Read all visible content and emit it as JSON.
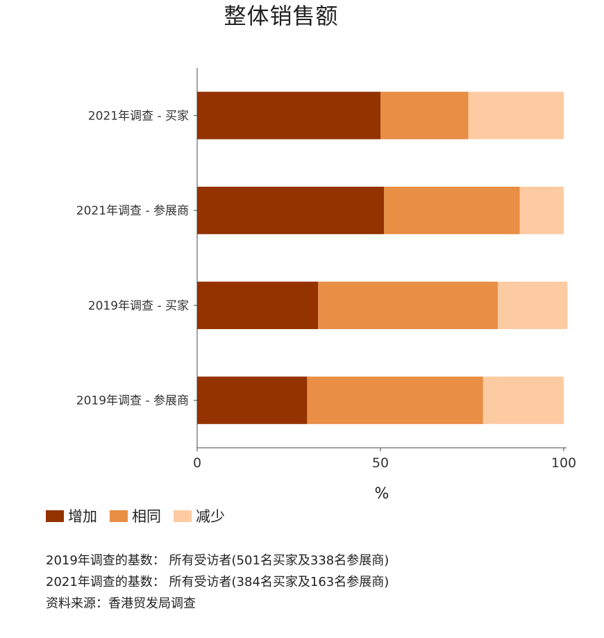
{
  "chart_data": {
    "type": "bar",
    "orientation": "horizontal",
    "stacked": true,
    "title": "整体销售额",
    "categories": [
      "2021年调查 - 买家",
      "2021年调查 - 参展商",
      "2019年调查 - 买家",
      "2019年调查 - 参展商"
    ],
    "series": [
      {
        "name": "增加",
        "color": "#943200",
        "values": [
          50,
          51,
          33,
          30
        ]
      },
      {
        "name": "相同",
        "color": "#E88E45",
        "values": [
          24,
          37,
          49,
          48
        ]
      },
      {
        "name": "减少",
        "color": "#FDCBA2",
        "values": [
          26,
          12,
          19,
          22
        ]
      }
    ],
    "xlabel": "%",
    "xlim": [
      0,
      100
    ],
    "xticks": [
      "0",
      "50",
      "100"
    ],
    "legend_position": "bottom-left",
    "grid": false
  },
  "notes": [
    "2019年调查的基数： 所有受访者(501名买家及338名参展商)",
    "2021年调查的基数： 所有受访者(384名买家及163名参展商)",
    "资料来源：香港贸发局调查"
  ]
}
